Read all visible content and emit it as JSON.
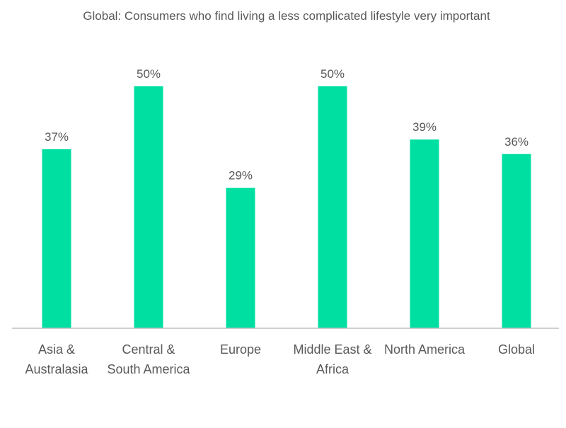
{
  "chart_data": {
    "type": "bar",
    "title": "Global: Consumers who find living a less complicated lifestyle very important",
    "categories": [
      [
        "Asia &",
        "Australasia"
      ],
      [
        "Central &",
        "South America"
      ],
      [
        "Europe"
      ],
      [
        "Middle East &",
        "Africa"
      ],
      [
        "North America"
      ],
      [
        "Global"
      ]
    ],
    "values": [
      37,
      50,
      29,
      50,
      39,
      36
    ],
    "value_labels": [
      "37%",
      "50%",
      "29%",
      "50%",
      "39%",
      "36%"
    ],
    "ylim": [
      0,
      50
    ],
    "grid": false,
    "legend": "none",
    "colors": {
      "bar": "#00DFA2",
      "text": "#595959",
      "axis": "#BFBFBF"
    }
  }
}
